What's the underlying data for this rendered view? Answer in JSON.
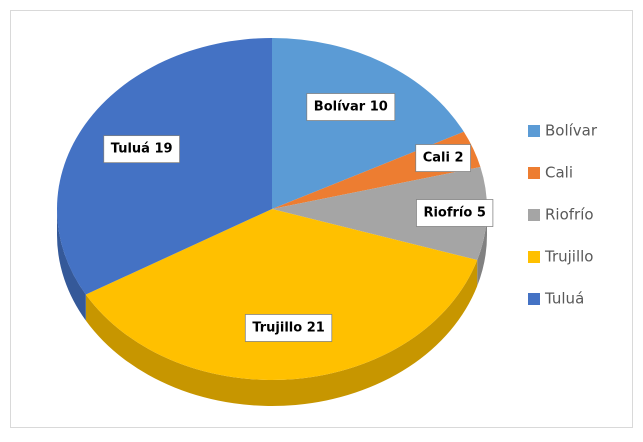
{
  "chart_data": {
    "type": "pie",
    "categories": [
      "Bolívar",
      "Cali",
      "Riofrío",
      "Trujillo",
      "Tuluá"
    ],
    "values": [
      10,
      2,
      5,
      21,
      19
    ],
    "value_labels": [
      "Bolívar 10",
      "Cali 2",
      "Riofrío 5",
      "Trujillo 21",
      "Tuluá 19"
    ],
    "colors": [
      "#5b9bd5",
      "#ed7d31",
      "#a5a5a5",
      "#ffc000",
      "#4472c4"
    ],
    "legend": "right",
    "three_d": true
  }
}
